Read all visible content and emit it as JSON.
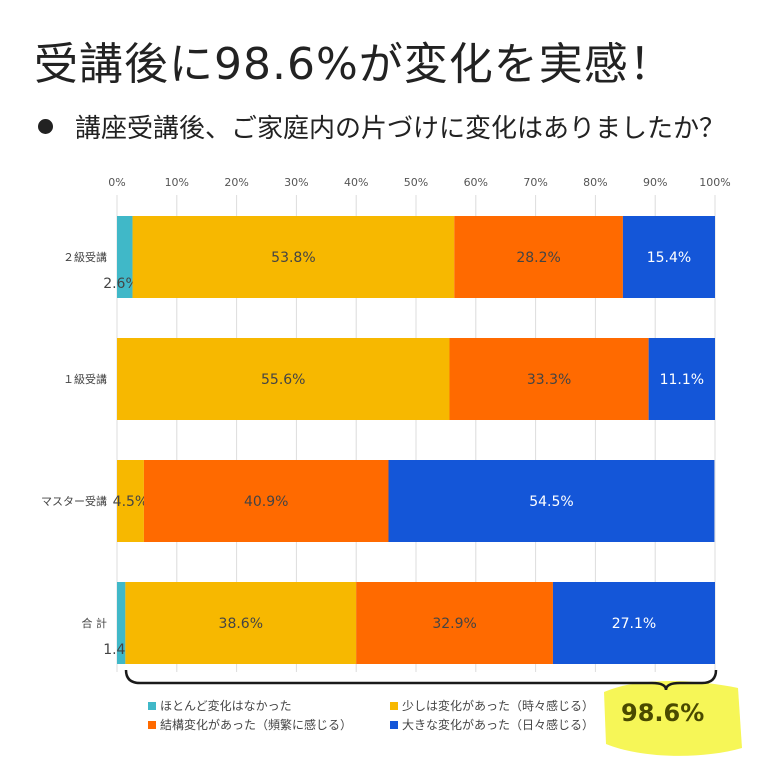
{
  "title": "受講後に98.6%が変化を実感！",
  "question": "講座受講後、ご家庭内の片づけに変化はありましたか？",
  "highlight_total": "98.6%",
  "colors": {
    "highlight": "#f5f53a",
    "bracket": "#1a1a1a",
    "grid": "#dcdcdc"
  },
  "chart_data": {
    "type": "bar",
    "orientation": "horizontal",
    "stacked": true,
    "percent": true,
    "xlim": [
      0,
      100
    ],
    "x_ticks": [
      "0%",
      "10%",
      "20%",
      "30%",
      "40%",
      "50%",
      "60%",
      "70%",
      "80%",
      "90%",
      "100%"
    ],
    "categories": [
      "２級受講",
      "１級受講",
      "マスター受講",
      "合 計"
    ],
    "series": [
      {
        "name": "ほとんど変化はなかった",
        "color": "#40b8c8",
        "values": [
          2.6,
          0,
          0,
          1.4
        ],
        "labels": [
          "2.6%",
          "",
          "",
          "1.4%"
        ]
      },
      {
        "name": "少しは変化があった（時々感じる）",
        "color": "#f7b800",
        "values": [
          53.8,
          55.6,
          4.5,
          38.6
        ],
        "labels": [
          "53.8%",
          "55.6%",
          "4.5%",
          "38.6%"
        ]
      },
      {
        "name": "結構変化があった（頻繁に感じる）",
        "color": "#ff6a00",
        "values": [
          28.2,
          33.3,
          40.9,
          32.9
        ],
        "labels": [
          "28.2%",
          "33.3%",
          "40.9%",
          "32.9%"
        ]
      },
      {
        "name": "大きな変化があった（日々感じる）",
        "color": "#1456d8",
        "values": [
          15.4,
          11.1,
          54.5,
          27.1
        ],
        "labels": [
          "15.4%",
          "11.1%",
          "54.5%",
          "27.1%"
        ]
      }
    ],
    "legend_position": "bottom"
  }
}
